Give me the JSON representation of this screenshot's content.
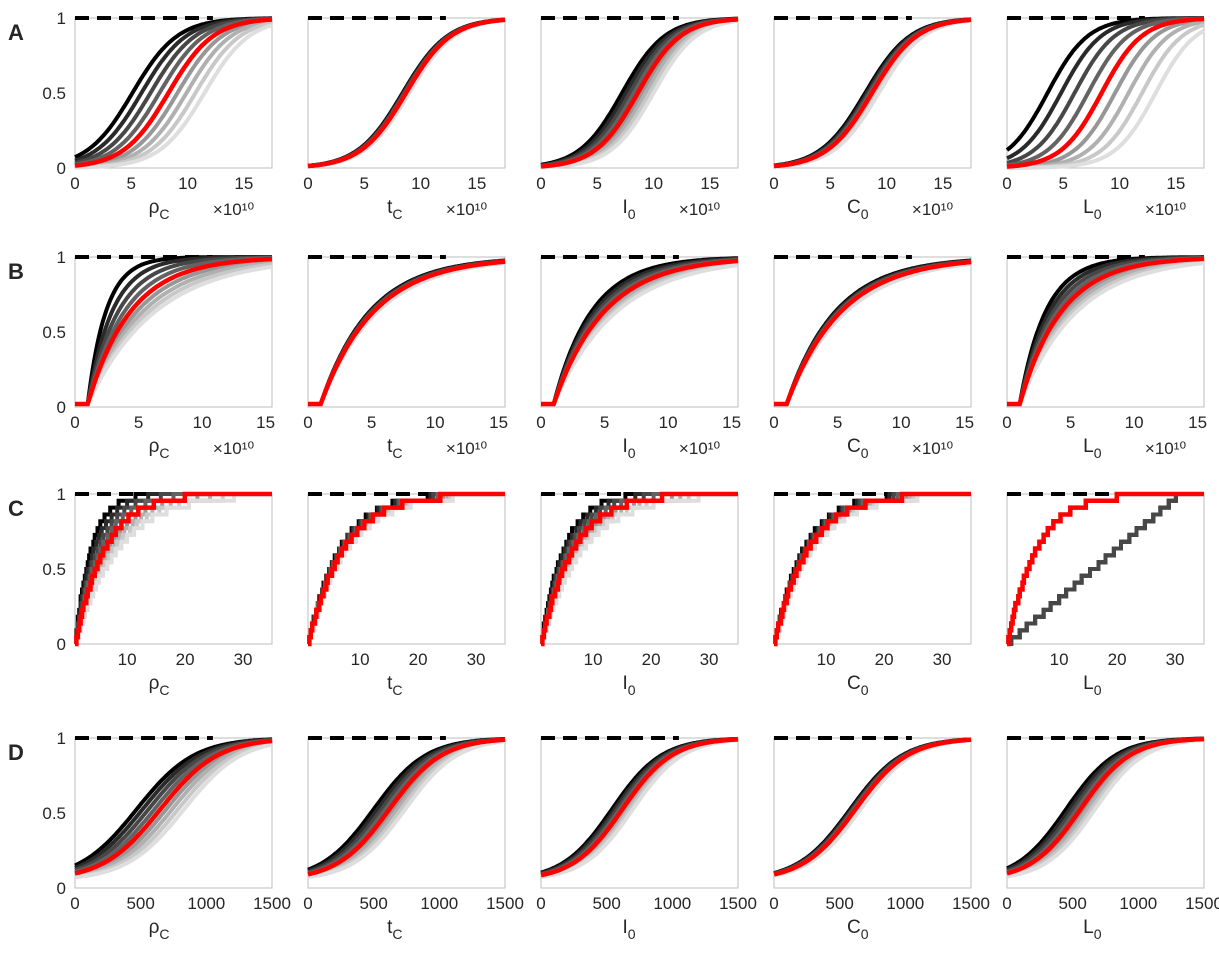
{
  "figure": {
    "row_labels": [
      "A",
      "B",
      "C",
      "D"
    ]
  },
  "chart_data": [
    {
      "row": "A",
      "type": "line",
      "ylim": [
        0,
        1
      ],
      "yticks": [
        "0",
        "0.5",
        "1"
      ],
      "xlim": [
        0,
        17.5
      ],
      "xticks": [
        "0",
        "5",
        "10",
        "15"
      ],
      "exponent_label": "×10¹⁰",
      "panels": [
        {
          "xlabel": "ρ_C",
          "red": {
            "kind": "sig",
            "mid": 8.3,
            "w": 2.0,
            "y0": 0.0
          },
          "spread": {
            "kind": "shift",
            "amt": 3.2
          }
        },
        {
          "xlabel": "t_C",
          "red": {
            "kind": "sig",
            "mid": 8.7,
            "w": 2.0,
            "y0": 0.0
          },
          "spread": {
            "kind": "shift",
            "amt": 0.3
          }
        },
        {
          "xlabel": "I_0",
          "red": {
            "kind": "sig",
            "mid": 8.6,
            "w": 1.9,
            "y0": 0.0
          },
          "spread": {
            "kind": "shift",
            "amt": 1.4
          }
        },
        {
          "xlabel": "C_0",
          "red": {
            "kind": "sig",
            "mid": 8.7,
            "w": 2.0,
            "y0": 0.0
          },
          "spread": {
            "kind": "shift",
            "amt": 0.6
          }
        },
        {
          "xlabel": "L_0",
          "red": {
            "kind": "sig",
            "mid": 8.4,
            "w": 1.8,
            "y0": 0.0
          },
          "spread": {
            "kind": "shift",
            "amt": 4.8
          }
        }
      ]
    },
    {
      "row": "B",
      "type": "line",
      "ylim": [
        0,
        1
      ],
      "yticks": [
        "0",
        "0.5",
        "1"
      ],
      "xlim": [
        0,
        15.5
      ],
      "xticks": [
        "0",
        "5",
        "10",
        "15"
      ],
      "exponent_label": "×10¹⁰",
      "panels": [
        {
          "xlabel": "ρ_C",
          "red": {
            "kind": "exp",
            "scale": 3.4,
            "y0": 0.02
          },
          "spread": {
            "kind": "scale",
            "amt": 2.3
          }
        },
        {
          "xlabel": "t_C",
          "red": {
            "kind": "exp",
            "scale": 4.2,
            "y0": 0.02
          },
          "spread": {
            "kind": "scale",
            "amt": 0.3
          }
        },
        {
          "xlabel": "I_0",
          "red": {
            "kind": "exp",
            "scale": 4.0,
            "y0": 0.02
          },
          "spread": {
            "kind": "scale",
            "amt": 1.0
          }
        },
        {
          "xlabel": "C_0",
          "red": {
            "kind": "exp",
            "scale": 4.3,
            "y0": 0.02
          },
          "spread": {
            "kind": "scale",
            "amt": 0.4
          }
        },
        {
          "xlabel": "L_0",
          "red": {
            "kind": "exp",
            "scale": 3.3,
            "y0": 0.02
          },
          "spread": {
            "kind": "scale",
            "amt": 1.5
          }
        }
      ]
    },
    {
      "row": "C",
      "type": "line",
      "step": true,
      "ylim": [
        0,
        1
      ],
      "yticks": [
        "0",
        "0.5",
        "1"
      ],
      "xlim": [
        1,
        35
      ],
      "xticks": [
        "10",
        "20",
        "30"
      ],
      "exponent_label": "",
      "panels": [
        {
          "xlabel": "ρ_C",
          "red": {
            "kind": "exp",
            "scale": 5.0,
            "y0": 0.0
          },
          "spread": {
            "kind": "scale",
            "amt": 1.8
          }
        },
        {
          "xlabel": "t_C",
          "red": {
            "kind": "exp",
            "scale": 6.0,
            "y0": 0.0
          },
          "spread": {
            "kind": "scale",
            "amt": 0.4
          }
        },
        {
          "xlabel": "I_0",
          "red": {
            "kind": "exp",
            "scale": 5.5,
            "y0": 0.0
          },
          "spread": {
            "kind": "scale",
            "amt": 1.2
          }
        },
        {
          "xlabel": "C_0",
          "red": {
            "kind": "exp",
            "scale": 5.8,
            "y0": 0.0
          },
          "spread": {
            "kind": "scale",
            "amt": 0.5
          }
        },
        {
          "xlabel": "L_0",
          "red": {
            "kind": "exp",
            "scale": 5.0,
            "y0": 0.0
          },
          "spread": {
            "kind": "lin",
            "amt": 2.5
          }
        }
      ]
    },
    {
      "row": "D",
      "type": "line",
      "ylim": [
        0,
        1
      ],
      "yticks": [
        "0",
        "0.5",
        "1"
      ],
      "xlim": [
        0,
        1500
      ],
      "xticks": [
        "0",
        "500",
        "1000",
        "1500"
      ],
      "exponent_label": "",
      "panels": [
        {
          "xlabel": "ρ_C",
          "red": {
            "kind": "sig",
            "mid": 650,
            "w": 220,
            "y0": 0.05
          },
          "spread": {
            "kind": "shift",
            "amt": 180
          }
        },
        {
          "xlabel": "t_C",
          "red": {
            "kind": "sig",
            "mid": 620,
            "w": 200,
            "y0": 0.05
          },
          "spread": {
            "kind": "shift",
            "amt": 120
          }
        },
        {
          "xlabel": "I_0",
          "red": {
            "kind": "sig",
            "mid": 620,
            "w": 190,
            "y0": 0.05
          },
          "spread": {
            "kind": "shift",
            "amt": 80
          }
        },
        {
          "xlabel": "C_0",
          "red": {
            "kind": "sig",
            "mid": 620,
            "w": 200,
            "y0": 0.05
          },
          "spread": {
            "kind": "shift",
            "amt": 40
          }
        },
        {
          "xlabel": "L_0",
          "red": {
            "kind": "sig",
            "mid": 560,
            "w": 190,
            "y0": 0.05
          },
          "spread": {
            "kind": "shift",
            "amt": 110
          }
        }
      ]
    }
  ]
}
